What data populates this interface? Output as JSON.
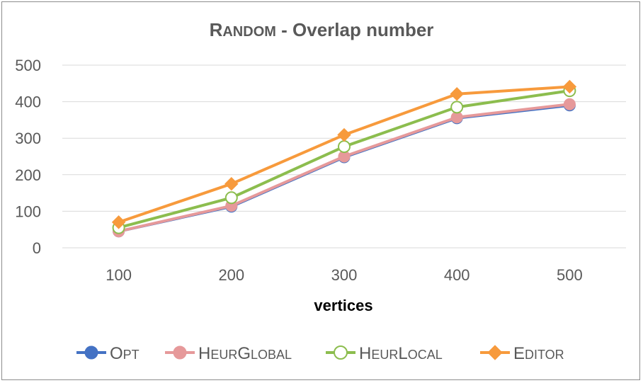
{
  "chart_data": {
    "type": "line",
    "title": {
      "prefix_cap": "R",
      "prefix_rest": "ANDOM",
      "rest": " - Overlap number"
    },
    "xlabel": "vertices",
    "ylabel": "",
    "categories": [
      "100",
      "200",
      "300",
      "400",
      "500"
    ],
    "ylim": [
      0,
      500
    ],
    "yticks": [
      "0",
      "100",
      "200",
      "300",
      "400",
      "500"
    ],
    "grid": true,
    "legend_position": "bottom",
    "series": [
      {
        "name": "OPT",
        "legend": {
          "cap": "O",
          "rest": "PT"
        },
        "color": "#4472c4",
        "marker": "circle-filled",
        "values": [
          45,
          113,
          248,
          355,
          390
        ]
      },
      {
        "name": "HEURGLOBAL",
        "legend": {
          "cap": "H",
          "rest": "EUR",
          "cap2": "G",
          "rest2": "LOBAL"
        },
        "color": "#e6999a",
        "marker": "circle-filled",
        "values": [
          45,
          115,
          250,
          357,
          393
        ]
      },
      {
        "name": "HEURLOCAL",
        "legend": {
          "cap": "H",
          "rest": "EUR",
          "cap2": "L",
          "rest2": "OCAL"
        },
        "color": "#8cbd4e",
        "marker": "circle-open",
        "values": [
          55,
          137,
          277,
          385,
          430
        ]
      },
      {
        "name": "EDITOR",
        "legend": {
          "cap": "E",
          "rest": "DITOR"
        },
        "color": "#f79a3c",
        "marker": "diamond",
        "values": [
          70,
          175,
          309,
          421,
          441
        ]
      }
    ]
  }
}
